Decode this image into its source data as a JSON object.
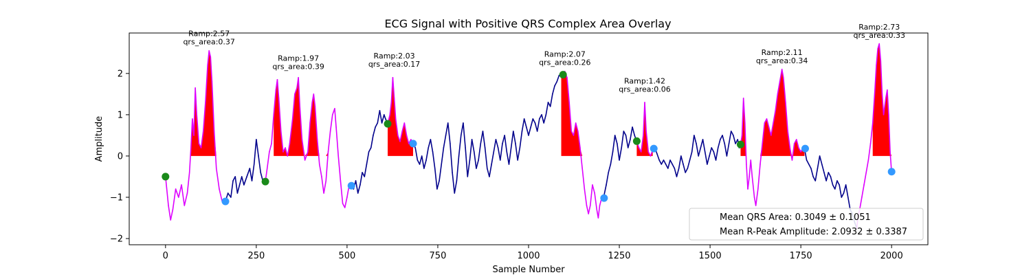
{
  "chart_data": {
    "type": "line",
    "title": "ECG Signal with Positive QRS Complex Area Overlay",
    "xlabel": "Sample Number",
    "ylabel": "Amplitude",
    "xlim": [
      -100,
      2100
    ],
    "ylim": [
      -2.15,
      2.98
    ],
    "xticks": [
      0,
      250,
      500,
      750,
      1000,
      1250,
      1500,
      1750,
      2000
    ],
    "yticks": [
      -2,
      -1,
      0,
      1,
      2
    ],
    "grid": false,
    "colors": {
      "signal": "#00008b",
      "qrs_segment": "#dd00ff",
      "area_fill": "#ff0000",
      "onset_marker": "#1a8a1a",
      "offset_marker": "#3399ff"
    },
    "signal_points": [
      [
        0,
        -0.5
      ],
      [
        8,
        -1.2
      ],
      [
        14,
        -1.55
      ],
      [
        20,
        -1.3
      ],
      [
        28,
        -0.8
      ],
      [
        36,
        -1.0
      ],
      [
        44,
        -0.7
      ],
      [
        52,
        -1.2
      ],
      [
        60,
        -0.9
      ],
      [
        66,
        -0.4
      ],
      [
        70,
        0.2
      ],
      [
        74,
        0.9
      ],
      [
        78,
        0.5
      ],
      [
        82,
        1.65
      ],
      [
        86,
        1.0
      ],
      [
        92,
        0.3
      ],
      [
        98,
        0.2
      ],
      [
        104,
        0.6
      ],
      [
        110,
        1.3
      ],
      [
        116,
        2.2
      ],
      [
        120,
        2.55
      ],
      [
        124,
        2.4
      ],
      [
        128,
        1.8
      ],
      [
        134,
        0.6
      ],
      [
        140,
        -0.3
      ],
      [
        148,
        -0.8
      ],
      [
        156,
        -1.1
      ],
      [
        165,
        -1.1
      ],
      [
        172,
        -0.9
      ],
      [
        180,
        -1.0
      ],
      [
        186,
        -0.6
      ],
      [
        192,
        -0.5
      ],
      [
        198,
        -0.9
      ],
      [
        204,
        -0.7
      ],
      [
        210,
        -0.5
      ],
      [
        216,
        -0.7
      ],
      [
        224,
        -0.5
      ],
      [
        232,
        -0.3
      ],
      [
        238,
        -0.6
      ],
      [
        244,
        -0.2
      ],
      [
        250,
        0.4
      ],
      [
        256,
        0.0
      ],
      [
        262,
        -0.4
      ],
      [
        268,
        -0.6
      ],
      [
        275,
        -0.62
      ],
      [
        280,
        -0.3
      ],
      [
        286,
        0.1
      ],
      [
        292,
        0.3
      ],
      [
        298,
        1.0
      ],
      [
        304,
        1.6
      ],
      [
        308,
        1.85
      ],
      [
        312,
        1.4
      ],
      [
        318,
        0.6
      ],
      [
        324,
        0.1
      ],
      [
        330,
        0.2
      ],
      [
        336,
        0.0
      ],
      [
        342,
        0.3
      ],
      [
        350,
        0.9
      ],
      [
        356,
        1.5
      ],
      [
        362,
        1.65
      ],
      [
        366,
        1.9
      ],
      [
        370,
        1.2
      ],
      [
        376,
        0.4
      ],
      [
        384,
        -0.1
      ],
      [
        392,
        0.1
      ],
      [
        398,
        0.8
      ],
      [
        404,
        1.3
      ],
      [
        408,
        1.5
      ],
      [
        412,
        1.2
      ],
      [
        418,
        0.4
      ],
      [
        424,
        -0.2
      ],
      [
        430,
        -0.5
      ],
      [
        436,
        -0.9
      ],
      [
        442,
        -0.6
      ],
      [
        448,
        0.1
      ],
      [
        454,
        0.6
      ],
      [
        460,
        1.0
      ],
      [
        466,
        1.15
      ],
      [
        470,
        0.7
      ],
      [
        476,
        0.0
      ],
      [
        482,
        -0.6
      ],
      [
        488,
        -1.15
      ],
      [
        494,
        -1.25
      ],
      [
        500,
        -1.0
      ],
      [
        506,
        -0.7
      ],
      [
        512,
        -0.72
      ],
      [
        518,
        -0.8
      ],
      [
        524,
        -0.6
      ],
      [
        530,
        -0.9
      ],
      [
        536,
        -0.7
      ],
      [
        542,
        -0.4
      ],
      [
        548,
        -0.5
      ],
      [
        554,
        -0.2
      ],
      [
        560,
        0.1
      ],
      [
        566,
        0.2
      ],
      [
        572,
        0.5
      ],
      [
        578,
        0.7
      ],
      [
        584,
        0.8
      ],
      [
        590,
        1.1
      ],
      [
        596,
        0.8
      ],
      [
        602,
        1.0
      ],
      [
        606,
        0.9
      ],
      [
        612,
        0.78
      ],
      [
        618,
        1.0
      ],
      [
        622,
        1.3
      ],
      [
        626,
        1.9
      ],
      [
        630,
        1.4
      ],
      [
        634,
        0.9
      ],
      [
        640,
        0.5
      ],
      [
        646,
        0.35
      ],
      [
        652,
        0.6
      ],
      [
        658,
        0.8
      ],
      [
        664,
        0.5
      ],
      [
        670,
        0.3
      ],
      [
        676,
        0.4
      ],
      [
        682,
        0.3
      ],
      [
        688,
        0.2
      ],
      [
        694,
        -0.1
      ],
      [
        700,
        -0.2
      ],
      [
        706,
        0.0
      ],
      [
        712,
        -0.3
      ],
      [
        718,
        -0.1
      ],
      [
        724,
        0.2
      ],
      [
        730,
        0.4
      ],
      [
        736,
        0.1
      ],
      [
        742,
        -0.3
      ],
      [
        748,
        -0.8
      ],
      [
        754,
        -0.6
      ],
      [
        760,
        -0.2
      ],
      [
        766,
        0.2
      ],
      [
        772,
        0.5
      ],
      [
        778,
        0.8
      ],
      [
        784,
        0.3
      ],
      [
        790,
        -0.4
      ],
      [
        796,
        -0.9
      ],
      [
        802,
        -0.6
      ],
      [
        808,
        0.0
      ],
      [
        814,
        0.5
      ],
      [
        820,
        0.8
      ],
      [
        826,
        0.2
      ],
      [
        832,
        -0.5
      ],
      [
        838,
        -0.1
      ],
      [
        844,
        0.4
      ],
      [
        850,
        0.1
      ],
      [
        856,
        -0.3
      ],
      [
        862,
        -0.1
      ],
      [
        868,
        0.3
      ],
      [
        874,
        0.6
      ],
      [
        880,
        0.2
      ],
      [
        886,
        -0.3
      ],
      [
        892,
        -0.5
      ],
      [
        898,
        -0.2
      ],
      [
        904,
        0.1
      ],
      [
        910,
        0.4
      ],
      [
        916,
        0.2
      ],
      [
        922,
        -0.1
      ],
      [
        928,
        0.3
      ],
      [
        934,
        0.5
      ],
      [
        940,
        0.1
      ],
      [
        946,
        -0.2
      ],
      [
        952,
        0.2
      ],
      [
        958,
        0.6
      ],
      [
        964,
        0.3
      ],
      [
        970,
        -0.1
      ],
      [
        976,
        0.2
      ],
      [
        982,
        0.6
      ],
      [
        988,
        0.9
      ],
      [
        994,
        0.7
      ],
      [
        1000,
        0.5
      ],
      [
        1006,
        0.7
      ],
      [
        1012,
        0.9
      ],
      [
        1018,
        0.8
      ],
      [
        1024,
        0.6
      ],
      [
        1030,
        0.9
      ],
      [
        1036,
        1.0
      ],
      [
        1042,
        0.8
      ],
      [
        1048,
        1.0
      ],
      [
        1054,
        1.3
      ],
      [
        1060,
        1.2
      ],
      [
        1066,
        1.5
      ],
      [
        1072,
        1.7
      ],
      [
        1078,
        1.8
      ],
      [
        1084,
        1.95
      ],
      [
        1090,
        2.0
      ],
      [
        1095,
        1.97
      ],
      [
        1100,
        2.05
      ],
      [
        1106,
        1.9
      ],
      [
        1112,
        1.3
      ],
      [
        1118,
        0.6
      ],
      [
        1124,
        0.5
      ],
      [
        1130,
        0.8
      ],
      [
        1136,
        0.6
      ],
      [
        1142,
        0.2
      ],
      [
        1148,
        -0.3
      ],
      [
        1154,
        -0.8
      ],
      [
        1160,
        -1.2
      ],
      [
        1165,
        -1.4
      ],
      [
        1170,
        -1.2
      ],
      [
        1176,
        -0.7
      ],
      [
        1182,
        -0.9
      ],
      [
        1188,
        -1.3
      ],
      [
        1192,
        -1.5
      ],
      [
        1196,
        -1.2
      ],
      [
        1202,
        -1.0
      ],
      [
        1208,
        -0.95
      ],
      [
        1214,
        -0.7
      ],
      [
        1220,
        -0.4
      ],
      [
        1226,
        -0.2
      ],
      [
        1232,
        0.1
      ],
      [
        1238,
        0.5
      ],
      [
        1244,
        0.3
      ],
      [
        1250,
        -0.1
      ],
      [
        1256,
        0.2
      ],
      [
        1262,
        0.6
      ],
      [
        1268,
        0.5
      ],
      [
        1274,
        0.2
      ],
      [
        1280,
        0.4
      ],
      [
        1286,
        0.7
      ],
      [
        1292,
        0.5
      ],
      [
        1298,
        0.35
      ],
      [
        1304,
        0.2
      ],
      [
        1310,
        0.1
      ],
      [
        1316,
        0.5
      ],
      [
        1320,
        1.3
      ],
      [
        1324,
        0.6
      ],
      [
        1330,
        0.1
      ],
      [
        1336,
        0.0
      ],
      [
        1342,
        0.15
      ],
      [
        1348,
        0.2
      ],
      [
        1354,
        0.05
      ],
      [
        1360,
        -0.1
      ],
      [
        1366,
        -0.2
      ],
      [
        1372,
        -0.1
      ],
      [
        1378,
        -0.2
      ],
      [
        1384,
        -0.3
      ],
      [
        1390,
        -0.1
      ],
      [
        1396,
        -0.2
      ],
      [
        1402,
        -0.3
      ],
      [
        1408,
        -0.5
      ],
      [
        1414,
        -0.3
      ],
      [
        1420,
        0.0
      ],
      [
        1426,
        -0.2
      ],
      [
        1432,
        -0.4
      ],
      [
        1438,
        -0.3
      ],
      [
        1444,
        -0.1
      ],
      [
        1450,
        0.1
      ],
      [
        1456,
        0.5
      ],
      [
        1462,
        0.3
      ],
      [
        1468,
        0.0
      ],
      [
        1474,
        0.2
      ],
      [
        1480,
        0.4
      ],
      [
        1486,
        0.1
      ],
      [
        1492,
        -0.2
      ],
      [
        1498,
        0.0
      ],
      [
        1504,
        0.2
      ],
      [
        1510,
        0.1
      ],
      [
        1516,
        -0.1
      ],
      [
        1522,
        0.2
      ],
      [
        1528,
        0.4
      ],
      [
        1534,
        0.5
      ],
      [
        1540,
        0.3
      ],
      [
        1546,
        0.0
      ],
      [
        1552,
        0.3
      ],
      [
        1558,
        0.6
      ],
      [
        1564,
        0.5
      ],
      [
        1570,
        0.3
      ],
      [
        1576,
        0.4
      ],
      [
        1580,
        0.2
      ],
      [
        1584,
        0.28
      ],
      [
        1588,
        0.5
      ],
      [
        1592,
        1.4
      ],
      [
        1596,
        0.8
      ],
      [
        1600,
        -0.2
      ],
      [
        1604,
        -0.8
      ],
      [
        1608,
        -0.5
      ],
      [
        1612,
        -0.1
      ],
      [
        1616,
        -0.5
      ],
      [
        1622,
        -1.0
      ],
      [
        1626,
        -1.2
      ],
      [
        1632,
        -0.8
      ],
      [
        1638,
        -0.2
      ],
      [
        1644,
        0.3
      ],
      [
        1650,
        0.8
      ],
      [
        1656,
        0.9
      ],
      [
        1662,
        0.7
      ],
      [
        1668,
        0.5
      ],
      [
        1674,
        0.8
      ],
      [
        1680,
        1.1
      ],
      [
        1686,
        1.5
      ],
      [
        1692,
        1.8
      ],
      [
        1698,
        2.1
      ],
      [
        1702,
        1.9
      ],
      [
        1708,
        1.3
      ],
      [
        1714,
        0.6
      ],
      [
        1720,
        0.2
      ],
      [
        1726,
        -0.1
      ],
      [
        1732,
        0.3
      ],
      [
        1738,
        0.4
      ],
      [
        1744,
        0.2
      ],
      [
        1750,
        0.1
      ],
      [
        1756,
        0.2
      ],
      [
        1760,
        0.18
      ],
      [
        1766,
        -0.1
      ],
      [
        1772,
        -0.2
      ],
      [
        1778,
        -0.3
      ],
      [
        1784,
        -0.5
      ],
      [
        1790,
        -0.6
      ],
      [
        1796,
        -0.3
      ],
      [
        1802,
        0.0
      ],
      [
        1808,
        -0.2
      ],
      [
        1814,
        -0.4
      ],
      [
        1820,
        -0.6
      ],
      [
        1826,
        -0.4
      ],
      [
        1832,
        -0.5
      ],
      [
        1838,
        -0.7
      ],
      [
        1844,
        -0.8
      ],
      [
        1850,
        -0.6
      ],
      [
        1856,
        -0.7
      ],
      [
        1862,
        -1.0
      ],
      [
        1868,
        -0.9
      ],
      [
        1874,
        -0.7
      ],
      [
        1880,
        -1.0
      ],
      [
        1886,
        -1.3
      ],
      [
        1892,
        -1.4
      ],
      [
        1898,
        -1.6
      ],
      [
        1904,
        -1.75
      ],
      [
        1908,
        -1.45
      ],
      [
        1912,
        -1.3
      ],
      [
        1918,
        -1.0
      ],
      [
        1924,
        -0.7
      ],
      [
        1930,
        -0.4
      ],
      [
        1936,
        -0.1
      ],
      [
        1942,
        0.3
      ],
      [
        1948,
        0.8
      ],
      [
        1954,
        1.6
      ],
      [
        1958,
        2.2
      ],
      [
        1962,
        2.6
      ],
      [
        1966,
        2.72
      ],
      [
        1970,
        2.3
      ],
      [
        1974,
        1.5
      ],
      [
        1978,
        1.0
      ],
      [
        1984,
        1.4
      ],
      [
        1988,
        1.6
      ],
      [
        1992,
        1.0
      ],
      [
        1996,
        0.1
      ],
      [
        2000,
        -0.4
      ]
    ],
    "qrs_segments": [
      [
        0,
        165
      ],
      [
        275,
        510
      ],
      [
        612,
        682
      ],
      [
        1095,
        1208
      ],
      [
        1298,
        1345
      ],
      [
        1584,
        1762
      ],
      [
        1905,
        2000
      ]
    ],
    "area_segments": [
      [
        70,
        145
      ],
      [
        295,
        450
      ],
      [
        610,
        685
      ],
      [
        1090,
        1150
      ],
      [
        1298,
        1345
      ],
      [
        1584,
        1762
      ],
      [
        1945,
        2000
      ]
    ],
    "onset_points": [
      {
        "x": 0,
        "y": -0.5
      },
      {
        "x": 275,
        "y": -0.62
      },
      {
        "x": 612,
        "y": 0.78
      },
      {
        "x": 1095,
        "y": 1.97
      },
      {
        "x": 1298,
        "y": 0.36
      },
      {
        "x": 1584,
        "y": 0.28
      }
    ],
    "offset_points": [
      {
        "x": 165,
        "y": -1.1
      },
      {
        "x": 512,
        "y": -0.72
      },
      {
        "x": 682,
        "y": 0.3
      },
      {
        "x": 1208,
        "y": -1.02
      },
      {
        "x": 1345,
        "y": 0.18
      },
      {
        "x": 1762,
        "y": 0.18
      },
      {
        "x": 2000,
        "y": -0.38
      }
    ],
    "annotations": [
      {
        "x": 120,
        "y": 2.57,
        "ramp": "Ramp:2.57",
        "area": "qrs_area:0.37"
      },
      {
        "x": 366,
        "y": 1.97,
        "ramp": "Ramp:1.97",
        "area": "qrs_area:0.39"
      },
      {
        "x": 630,
        "y": 2.03,
        "ramp": "Ramp:2.03",
        "area": "qrs_area:0.17"
      },
      {
        "x": 1100,
        "y": 2.07,
        "ramp": "Ramp:2.07",
        "area": "qrs_area:0.26"
      },
      {
        "x": 1320,
        "y": 1.42,
        "ramp": "Ramp:1.42",
        "area": "qrs_area:0.06"
      },
      {
        "x": 1698,
        "y": 2.11,
        "ramp": "Ramp:2.11",
        "area": "qrs_area:0.34"
      },
      {
        "x": 1966,
        "y": 2.73,
        "ramp": "Ramp:2.73",
        "area": "qrs_area:0.33"
      }
    ],
    "legend": {
      "placement": "lower-right",
      "entries": [
        "Mean QRS Area: 0.3049 ± 0.1051",
        "Mean R-Peak Amplitude: 2.0932 ± 0.3387"
      ]
    }
  }
}
